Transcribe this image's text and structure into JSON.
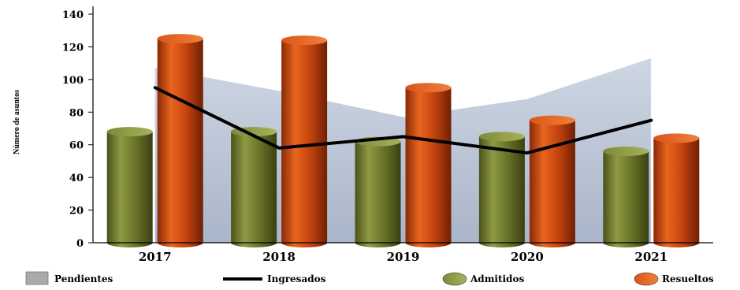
{
  "chart_data": {
    "type": "bar",
    "ylabel": "Número de asuntos",
    "ylim": [
      0,
      140
    ],
    "yticks": [
      0,
      20,
      40,
      60,
      80,
      100,
      120,
      140
    ],
    "categories": [
      "2017",
      "2018",
      "2019",
      "2020",
      "2021"
    ],
    "series": [
      {
        "name": "Pendientes",
        "kind": "area",
        "values": [
          107,
          93,
          77,
          88,
          113
        ],
        "color": "#b8c4d6"
      },
      {
        "name": "Ingresados",
        "kind": "line",
        "values": [
          95,
          58,
          65,
          55,
          75
        ],
        "color": "#000000"
      },
      {
        "name": "Admitidos",
        "kind": "bar",
        "values": [
          68,
          68,
          62,
          65,
          56
        ],
        "color": "#6f7a2e"
      },
      {
        "name": "Resueltos",
        "kind": "bar",
        "values": [
          125,
          124,
          95,
          75,
          64
        ],
        "color": "#c8460f"
      }
    ],
    "grid": false,
    "legend": "bottom"
  }
}
